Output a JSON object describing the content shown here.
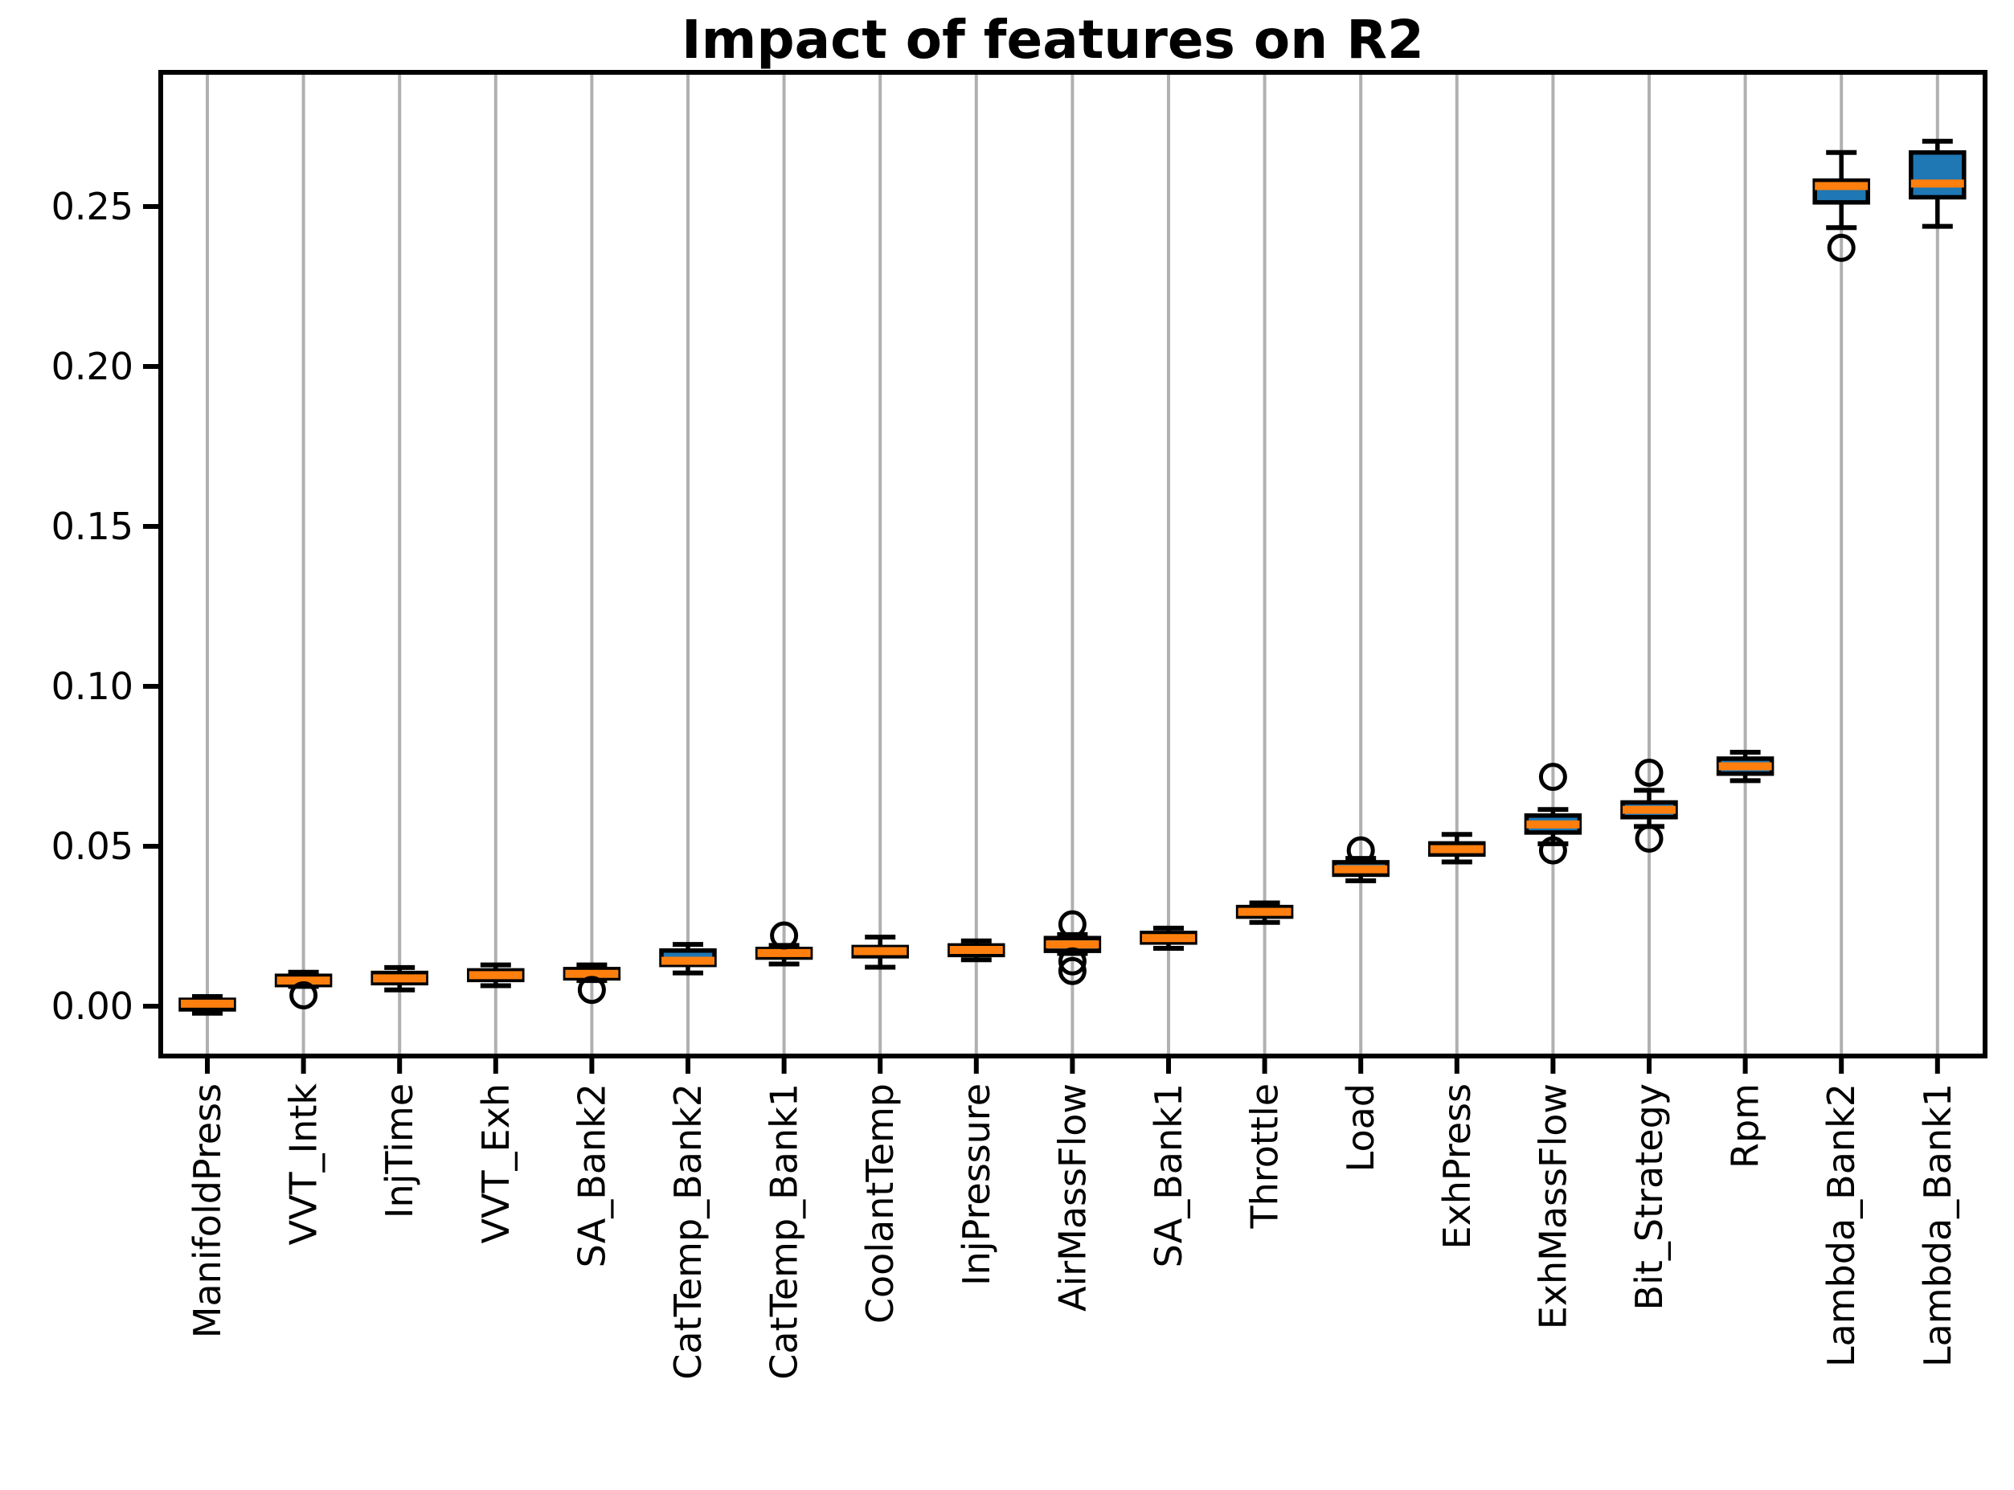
{
  "figure": {
    "title": "Impact of features on R2"
  },
  "chart_data": {
    "type": "box",
    "title": "Impact of features on R2",
    "xlabel": "",
    "ylabel": "",
    "ylim": [
      -0.016,
      0.292
    ],
    "yticks": [
      0.0,
      0.05,
      0.1,
      0.15,
      0.2,
      0.25
    ],
    "ytick_labels": [
      "0.00",
      "0.05",
      "0.10",
      "0.15",
      "0.20",
      "0.25"
    ],
    "grid": "vertical-x-gridlines",
    "legend": "none",
    "categories": [
      "ManifoldPress",
      "VVT_Intk",
      "InjTime",
      "VVT_Exh",
      "SA_Bank2",
      "CatTemp_Bank2",
      "CatTemp_Bank1",
      "CoolantTemp",
      "InjPressure",
      "AirMassFlow",
      "SA_Bank1",
      "Throttle",
      "Load",
      "ExhPress",
      "ExhMassFlow",
      "Bit_Strategy",
      "Rpm",
      "Lambda_Bank2",
      "Lambda_Bank1"
    ],
    "boxes": [
      {
        "label": "ManifoldPress",
        "whislo": -0.0022,
        "q1": -0.001,
        "med": 0.0008,
        "q3": 0.002,
        "whishi": 0.003,
        "outliers": []
      },
      {
        "label": "VVT_Intk",
        "whislo": 0.0062,
        "q1": 0.0066,
        "med": 0.008,
        "q3": 0.0095,
        "whishi": 0.0106,
        "outliers": [
          0.0034
        ]
      },
      {
        "label": "InjTime",
        "whislo": 0.0051,
        "q1": 0.0072,
        "med": 0.0087,
        "q3": 0.0104,
        "whishi": 0.0121,
        "outliers": []
      },
      {
        "label": "VVT_Exh",
        "whislo": 0.0064,
        "q1": 0.0082,
        "med": 0.0097,
        "q3": 0.0112,
        "whishi": 0.0129,
        "outliers": []
      },
      {
        "label": "SA_Bank2",
        "whislo": 0.008,
        "q1": 0.0087,
        "med": 0.0101,
        "q3": 0.0116,
        "whishi": 0.0129,
        "outliers": [
          0.0051
        ]
      },
      {
        "label": "CatTemp_Bank2",
        "whislo": 0.0104,
        "q1": 0.0129,
        "med": 0.0142,
        "q3": 0.0174,
        "whishi": 0.0193,
        "outliers": []
      },
      {
        "label": "CatTemp_Bank1",
        "whislo": 0.0132,
        "q1": 0.0152,
        "med": 0.0166,
        "q3": 0.0179,
        "whishi": 0.019,
        "outliers": [
          0.0221
        ]
      },
      {
        "label": "CoolantTemp",
        "whislo": 0.0122,
        "q1": 0.0156,
        "med": 0.0172,
        "q3": 0.0185,
        "whishi": 0.0216,
        "outliers": []
      },
      {
        "label": "InjPressure",
        "whislo": 0.0145,
        "q1": 0.016,
        "med": 0.0176,
        "q3": 0.019,
        "whishi": 0.0204,
        "outliers": []
      },
      {
        "label": "AirMassFlow",
        "whislo": 0.0165,
        "q1": 0.0173,
        "med": 0.0193,
        "q3": 0.0213,
        "whishi": 0.0224,
        "outliers": [
          0.0256,
          0.014,
          0.011
        ]
      },
      {
        "label": "SA_Bank1",
        "whislo": 0.0181,
        "q1": 0.0199,
        "med": 0.0213,
        "q3": 0.0229,
        "whishi": 0.0244,
        "outliers": []
      },
      {
        "label": "Throttle",
        "whislo": 0.0262,
        "q1": 0.028,
        "med": 0.0295,
        "q3": 0.031,
        "whishi": 0.0323,
        "outliers": []
      },
      {
        "label": "Load",
        "whislo": 0.0392,
        "q1": 0.0411,
        "med": 0.0428,
        "q3": 0.045,
        "whishi": 0.0462,
        "outliers": [
          0.0487
        ]
      },
      {
        "label": "ExhPress",
        "whislo": 0.0451,
        "q1": 0.0474,
        "med": 0.0491,
        "q3": 0.0509,
        "whishi": 0.0537,
        "outliers": []
      },
      {
        "label": "ExhMassFlow",
        "whislo": 0.0508,
        "q1": 0.0543,
        "med": 0.0568,
        "q3": 0.0596,
        "whishi": 0.0615,
        "outliers": [
          0.0717,
          0.0487
        ]
      },
      {
        "label": "Bit_Strategy",
        "whislo": 0.0562,
        "q1": 0.0591,
        "med": 0.0614,
        "q3": 0.0637,
        "whishi": 0.0675,
        "outliers": [
          0.073,
          0.0524
        ]
      },
      {
        "label": "Rpm",
        "whislo": 0.0705,
        "q1": 0.0727,
        "med": 0.075,
        "q3": 0.0774,
        "whishi": 0.0794,
        "outliers": []
      },
      {
        "label": "Lambda_Bank2",
        "whislo": 0.2434,
        "q1": 0.2513,
        "med": 0.2564,
        "q3": 0.2581,
        "whishi": 0.2669,
        "outliers": [
          0.2371
        ]
      },
      {
        "label": "Lambda_Bank1",
        "whislo": 0.2438,
        "q1": 0.2529,
        "med": 0.2572,
        "q3": 0.2669,
        "whishi": 0.2704,
        "outliers": []
      }
    ],
    "colors": {
      "box_fill": "#1f77b4",
      "median": "#ff7f0e",
      "line": "#000000",
      "grid": "#b0b0b0",
      "background": "#ffffff"
    }
  }
}
